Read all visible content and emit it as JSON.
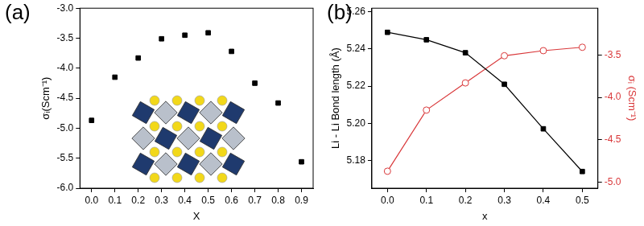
{
  "chart_data": [
    {
      "type": "scatter",
      "title": "(a)",
      "x_label": "X",
      "y_label": "σᵢ(Scm⁻¹)",
      "x": [
        0,
        0.1,
        0.2,
        0.3,
        0.4,
        0.5,
        0.6,
        0.7,
        0.8,
        0.9
      ],
      "series": [
        {
          "color": "#000000",
          "marker": "square",
          "values": [
            -4.87,
            -4.15,
            -3.83,
            -3.51,
            -3.45,
            -3.41,
            -3.72,
            -4.25,
            -4.58,
            -5.56
          ]
        }
      ],
      "xlim": [
        -0.05,
        0.95
      ],
      "xticks": [
        {
          "value": 0,
          "label": "0.0"
        },
        0.1,
        0.2,
        0.3,
        0.4,
        0.5,
        0.6,
        0.7,
        0.8,
        0.9
      ],
      "ylim": [
        -6,
        -3
      ],
      "yticks": [
        {
          "value": -6,
          "label": "-6.0"
        },
        -5.5,
        {
          "value": -5,
          "label": "-5.0"
        },
        -4.5,
        {
          "value": -4,
          "label": "-4.0"
        },
        -3.5,
        {
          "value": -3,
          "label": "-3.0"
        }
      ],
      "grid": false
    },
    {
      "type": "line",
      "title": "(b)",
      "x_label": "x",
      "y_label": "Li - Li Bond length (Å)",
      "y2_label": "σᵢ (Scm⁻¹)",
      "x": [
        0,
        0.1,
        0.2,
        0.3,
        0.4,
        0.5
      ],
      "series": [
        {
          "color": "#000000",
          "marker": "square",
          "line_style": "solid",
          "values": [
            5.249,
            5.245,
            5.238,
            5.221,
            5.197,
            5.174
          ]
        },
        {
          "color": "#d9383a",
          "marker": "open_circle",
          "line_style": "solid",
          "axis": "y2",
          "values": [
            -4.87,
            -4.15,
            -3.83,
            -3.51,
            -3.45,
            -3.41
          ]
        }
      ],
      "xlim": [
        -0.04,
        0.54
      ],
      "xticks": [
        {
          "value": 0,
          "label": "0.0"
        },
        0.1,
        0.2,
        0.3,
        0.4,
        0.5
      ],
      "ylim": [
        5.165,
        5.262
      ],
      "yticks": [
        5.18,
        {
          "value": 5.2,
          "label": "5.20"
        },
        5.22,
        5.24,
        5.26
      ],
      "y2lim": [
        -5.07,
        -2.95
      ],
      "y2ticks": [
        {
          "value": -5,
          "label": "-5.0"
        },
        -4.5,
        {
          "value": -4,
          "label": "-4.0"
        },
        -3.5
      ],
      "grid": false
    }
  ]
}
